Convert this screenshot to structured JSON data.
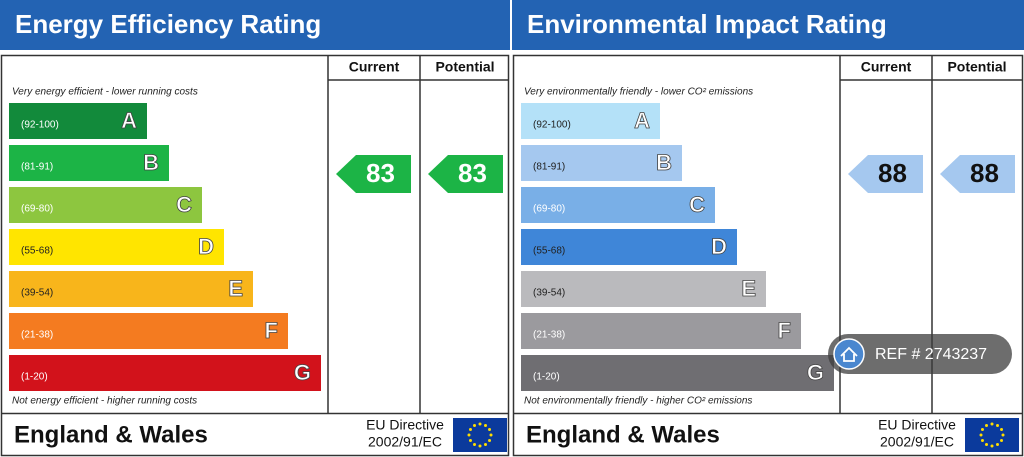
{
  "panels": [
    {
      "title": "Energy Efficiency Rating",
      "columns": [
        "Current",
        "Potential"
      ],
      "top_note": "Very energy efficient - lower running costs",
      "bottom_note": "Not energy efficient - higher running costs",
      "bands": [
        {
          "range": "(92-100)",
          "letter": "A",
          "color": "#128a3b",
          "label_color": "#ffffff"
        },
        {
          "range": "(81-91)",
          "letter": "B",
          "color": "#1cb446",
          "label_color": "#ffffff"
        },
        {
          "range": "(69-80)",
          "letter": "C",
          "color": "#8dc63f",
          "label_color": "#ffffff"
        },
        {
          "range": "(55-68)",
          "letter": "D",
          "color": "#ffe500",
          "label_color": "#222222"
        },
        {
          "range": "(39-54)",
          "letter": "E",
          "color": "#f8b51b",
          "label_color": "#222222"
        },
        {
          "range": "(21-38)",
          "letter": "F",
          "color": "#f47b20",
          "label_color": "#ffffff"
        },
        {
          "range": "(1-20)",
          "letter": "G",
          "color": "#d2121b",
          "label_color": "#ffffff"
        }
      ],
      "current": 83,
      "potential": 83,
      "arrow_color": "#1cb446",
      "arrow_text_color": "#ffffff",
      "region": "England & Wales",
      "directive": [
        "EU Directive",
        "2002/91/EC"
      ]
    },
    {
      "title": "Environmental Impact Rating",
      "columns": [
        "Current",
        "Potential"
      ],
      "top_note": "Very environmentally friendly - lower CO² emissions",
      "bottom_note": "Not environmentally friendly - higher CO² emissions",
      "bands": [
        {
          "range": "(92-100)",
          "letter": "A",
          "color": "#b4e1f8",
          "label_color": "#222222"
        },
        {
          "range": "(81-91)",
          "letter": "B",
          "color": "#a5c8ef",
          "label_color": "#222222"
        },
        {
          "range": "(69-80)",
          "letter": "C",
          "color": "#79afe7",
          "label_color": "#ffffff"
        },
        {
          "range": "(55-68)",
          "letter": "D",
          "color": "#3f86d8",
          "label_color": "#222222"
        },
        {
          "range": "(39-54)",
          "letter": "E",
          "color": "#bababd",
          "label_color": "#222222"
        },
        {
          "range": "(21-38)",
          "letter": "F",
          "color": "#9b9a9e",
          "label_color": "#ffffff"
        },
        {
          "range": "(1-20)",
          "letter": "G",
          "color": "#6f6e72",
          "label_color": "#ffffff"
        }
      ],
      "current": 88,
      "potential": 88,
      "arrow_color": "#a5c8ef",
      "arrow_text_color": "#111111",
      "region": "England & Wales",
      "directive": [
        "EU Directive",
        "2002/91/EC"
      ]
    }
  ],
  "watermark": "REF # 2743237"
}
